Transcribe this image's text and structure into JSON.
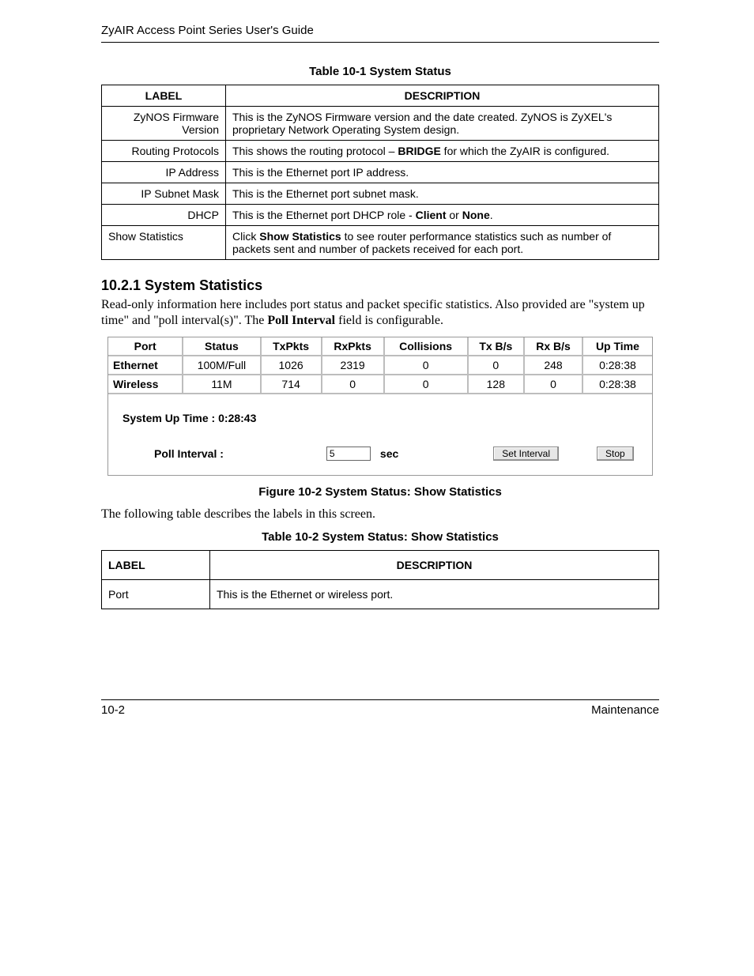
{
  "header": {
    "running_head": "ZyAIR Access Point Series User's Guide"
  },
  "table_10_1": {
    "caption": "Table 10-1 System Status",
    "columns": [
      "LABEL",
      "DESCRIPTION"
    ],
    "rows": [
      {
        "label": "ZyNOS Firmware Version",
        "label_align": "right",
        "desc_parts": [
          {
            "text": "This is the ZyNOS Firmware version and the date created. ZyNOS is ZyXEL's proprietary Network Operating System design.",
            "bold": false
          }
        ]
      },
      {
        "label": "Routing Protocols",
        "label_align": "right",
        "desc_parts": [
          {
            "text": "This shows the routing protocol – ",
            "bold": false
          },
          {
            "text": "BRIDGE",
            "bold": true
          },
          {
            "text": " for which the ZyAIR is configured.",
            "bold": false
          }
        ]
      },
      {
        "label": "IP Address",
        "label_align": "right",
        "desc_parts": [
          {
            "text": "This is the Ethernet port IP address.",
            "bold": false
          }
        ]
      },
      {
        "label": "IP Subnet Mask",
        "label_align": "right",
        "desc_parts": [
          {
            "text": "This is the Ethernet port subnet mask.",
            "bold": false
          }
        ]
      },
      {
        "label": "DHCP",
        "label_align": "right",
        "desc_parts": [
          {
            "text": "This is the Ethernet port DHCP role - ",
            "bold": false
          },
          {
            "text": "Client",
            "bold": true
          },
          {
            "text": " or ",
            "bold": false
          },
          {
            "text": "None",
            "bold": true
          },
          {
            "text": ".",
            "bold": false
          }
        ]
      },
      {
        "label": "Show Statistics",
        "label_align": "left",
        "desc_parts": [
          {
            "text": "Click ",
            "bold": false
          },
          {
            "text": "Show Statistics",
            "bold": true
          },
          {
            "text": " to see router performance statistics such as number of packets sent and number of packets received for each port.",
            "bold": false
          }
        ]
      }
    ]
  },
  "section": {
    "heading": "10.2.1 System Statistics",
    "para_parts": [
      {
        "text": "Read-only information here includes port status and packet specific statistics. Also provided are \"system up time\" and \"poll interval(s)\".  The ",
        "bold": false
      },
      {
        "text": "Poll Interval",
        "bold": true
      },
      {
        "text": " field is configurable.",
        "bold": false
      }
    ]
  },
  "stats_figure": {
    "columns": [
      "Port",
      "Status",
      "TxPkts",
      "RxPkts",
      "Collisions",
      "Tx B/s",
      "Rx B/s",
      "Up Time"
    ],
    "rows": [
      {
        "port": "Ethernet",
        "status": "100M/Full",
        "tx": "1026",
        "rx": "2319",
        "col": "0",
        "txbs": "0",
        "rxbs": "248",
        "up": "0:28:38"
      },
      {
        "port": "Wireless",
        "status": "11M",
        "tx": "714",
        "rx": "0",
        "col": "0",
        "txbs": "128",
        "rxbs": "0",
        "up": "0:28:38"
      }
    ],
    "uptime_label": "System Up Time : ",
    "uptime_value": "0:28:43",
    "poll_label": "Poll Interval :",
    "poll_value": "5",
    "sec_label": "sec",
    "set_button": "Set Interval",
    "stop_button": "Stop",
    "caption": "Figure 10-2 System Status: Show Statistics"
  },
  "post_fig_para": "The following table describes the labels in this screen.",
  "table_10_2": {
    "caption": "Table 10-2 System Status: Show Statistics",
    "columns": [
      "LABEL",
      "DESCRIPTION"
    ],
    "rows": [
      {
        "label": "Port",
        "desc": "This is the Ethernet or wireless port."
      }
    ]
  },
  "footer": {
    "page_num": "10-2",
    "section": "Maintenance"
  }
}
